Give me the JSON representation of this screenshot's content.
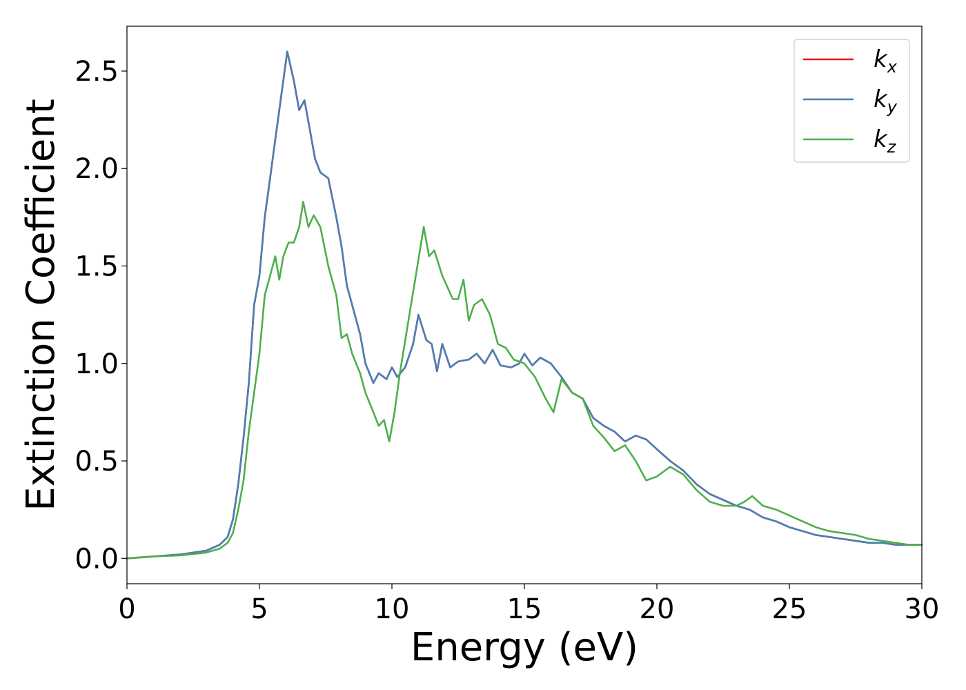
{
  "chart_data": {
    "type": "line",
    "title": "",
    "xlabel": "Energy (eV)",
    "ylabel": "Extinction Coefficient",
    "xlim": [
      0,
      30
    ],
    "ylim": [
      -0.13,
      2.73
    ],
    "xticks": [
      0,
      5,
      10,
      15,
      20,
      25,
      30
    ],
    "xtick_labels": [
      "0",
      "5",
      "10",
      "15",
      "20",
      "25",
      "30"
    ],
    "yticks": [
      0.0,
      0.5,
      1.0,
      1.5,
      2.0,
      2.5
    ],
    "ytick_labels": [
      "0.0",
      "0.5",
      "1.0",
      "1.5",
      "2.0",
      "2.5"
    ],
    "grid": false,
    "legend_position": "top-right",
    "series": [
      {
        "name": "k_x",
        "legend_base": "k",
        "legend_sub": "x",
        "color": "#e41a1c",
        "x": [
          0,
          1,
          2,
          3,
          3.5,
          3.8,
          4.0,
          4.2,
          4.4,
          4.6,
          4.8,
          5.0,
          5.2,
          5.4,
          5.6,
          5.8,
          6.05,
          6.3,
          6.5,
          6.7,
          6.9,
          7.1,
          7.3,
          7.6,
          7.9,
          8.1,
          8.3,
          8.5,
          8.8,
          9.0,
          9.3,
          9.5,
          9.8,
          10.0,
          10.2,
          10.5,
          10.8,
          11.0,
          11.3,
          11.5,
          11.7,
          11.9,
          12.2,
          12.5,
          12.9,
          13.2,
          13.5,
          13.8,
          14.1,
          14.5,
          14.8,
          15.0,
          15.3,
          15.6,
          16.0,
          16.4,
          16.8,
          17.2,
          17.6,
          18.0,
          18.4,
          18.8,
          19.2,
          19.6,
          20.0,
          20.5,
          21.0,
          21.5,
          22.0,
          22.5,
          23.0,
          23.5,
          24.0,
          24.5,
          25.0,
          25.5,
          26.0,
          26.5,
          27.0,
          27.5,
          28.0,
          28.5,
          29.0,
          29.5,
          30.0
        ],
        "y": [
          0.0,
          0.01,
          0.02,
          0.04,
          0.07,
          0.11,
          0.2,
          0.38,
          0.62,
          0.9,
          1.3,
          1.45,
          1.75,
          1.95,
          2.15,
          2.35,
          2.6,
          2.45,
          2.3,
          2.35,
          2.2,
          2.05,
          1.98,
          1.95,
          1.75,
          1.6,
          1.4,
          1.3,
          1.15,
          1.0,
          0.9,
          0.95,
          0.92,
          0.98,
          0.93,
          0.98,
          1.1,
          1.25,
          1.12,
          1.1,
          0.96,
          1.1,
          0.98,
          1.01,
          1.02,
          1.05,
          1.0,
          1.07,
          0.99,
          0.98,
          1.0,
          1.05,
          0.99,
          1.03,
          1.0,
          0.93,
          0.85,
          0.82,
          0.72,
          0.68,
          0.65,
          0.6,
          0.63,
          0.61,
          0.56,
          0.5,
          0.45,
          0.38,
          0.33,
          0.3,
          0.27,
          0.25,
          0.21,
          0.19,
          0.16,
          0.14,
          0.12,
          0.11,
          0.1,
          0.09,
          0.08,
          0.08,
          0.07,
          0.07,
          0.07
        ]
      },
      {
        "name": "k_y",
        "legend_base": "k",
        "legend_sub": "y",
        "color": "#4a7fb5",
        "x": [
          0,
          1,
          2,
          3,
          3.5,
          3.8,
          4.0,
          4.2,
          4.4,
          4.6,
          4.8,
          5.0,
          5.2,
          5.4,
          5.6,
          5.8,
          6.05,
          6.3,
          6.5,
          6.7,
          6.9,
          7.1,
          7.3,
          7.6,
          7.9,
          8.1,
          8.3,
          8.5,
          8.8,
          9.0,
          9.3,
          9.5,
          9.8,
          10.0,
          10.2,
          10.5,
          10.8,
          11.0,
          11.3,
          11.5,
          11.7,
          11.9,
          12.2,
          12.5,
          12.9,
          13.2,
          13.5,
          13.8,
          14.1,
          14.5,
          14.8,
          15.0,
          15.3,
          15.6,
          16.0,
          16.4,
          16.8,
          17.2,
          17.6,
          18.0,
          18.4,
          18.8,
          19.2,
          19.6,
          20.0,
          20.5,
          21.0,
          21.5,
          22.0,
          22.5,
          23.0,
          23.5,
          24.0,
          24.5,
          25.0,
          25.5,
          26.0,
          26.5,
          27.0,
          27.5,
          28.0,
          28.5,
          29.0,
          29.5,
          30.0
        ],
        "y": [
          0.0,
          0.01,
          0.02,
          0.04,
          0.07,
          0.11,
          0.2,
          0.38,
          0.62,
          0.9,
          1.3,
          1.45,
          1.75,
          1.95,
          2.15,
          2.35,
          2.6,
          2.45,
          2.3,
          2.35,
          2.2,
          2.05,
          1.98,
          1.95,
          1.75,
          1.6,
          1.4,
          1.3,
          1.15,
          1.0,
          0.9,
          0.95,
          0.92,
          0.98,
          0.93,
          0.98,
          1.1,
          1.25,
          1.12,
          1.1,
          0.96,
          1.1,
          0.98,
          1.01,
          1.02,
          1.05,
          1.0,
          1.07,
          0.99,
          0.98,
          1.0,
          1.05,
          0.99,
          1.03,
          1.0,
          0.93,
          0.85,
          0.82,
          0.72,
          0.68,
          0.65,
          0.6,
          0.63,
          0.61,
          0.56,
          0.5,
          0.45,
          0.38,
          0.33,
          0.3,
          0.27,
          0.25,
          0.21,
          0.19,
          0.16,
          0.14,
          0.12,
          0.11,
          0.1,
          0.09,
          0.08,
          0.08,
          0.07,
          0.07,
          0.07
        ]
      },
      {
        "name": "k_z",
        "legend_base": "k",
        "legend_sub": "z",
        "color": "#4daf4a",
        "x": [
          0,
          1,
          2,
          3,
          3.5,
          3.8,
          4.0,
          4.2,
          4.4,
          4.6,
          4.8,
          5.0,
          5.2,
          5.4,
          5.6,
          5.75,
          5.9,
          6.1,
          6.3,
          6.5,
          6.65,
          6.85,
          7.05,
          7.3,
          7.6,
          7.9,
          8.1,
          8.3,
          8.5,
          8.8,
          9.0,
          9.3,
          9.5,
          9.7,
          9.9,
          10.1,
          10.3,
          10.6,
          10.9,
          11.2,
          11.4,
          11.6,
          11.9,
          12.3,
          12.5,
          12.7,
          12.9,
          13.1,
          13.4,
          13.7,
          14.0,
          14.3,
          14.6,
          15.0,
          15.4,
          15.8,
          16.1,
          16.4,
          16.8,
          17.2,
          17.6,
          18.0,
          18.4,
          18.8,
          19.2,
          19.6,
          20.0,
          20.5,
          21.0,
          21.5,
          22.0,
          22.5,
          23.0,
          23.3,
          23.6,
          24.0,
          24.5,
          25.0,
          25.5,
          26.0,
          26.5,
          27.0,
          27.5,
          28.0,
          28.5,
          29.0,
          29.5,
          30.0
        ],
        "y": [
          0.0,
          0.01,
          0.015,
          0.03,
          0.05,
          0.08,
          0.13,
          0.25,
          0.4,
          0.65,
          0.85,
          1.05,
          1.35,
          1.45,
          1.55,
          1.43,
          1.55,
          1.62,
          1.62,
          1.7,
          1.83,
          1.7,
          1.76,
          1.7,
          1.5,
          1.35,
          1.13,
          1.15,
          1.05,
          0.95,
          0.85,
          0.75,
          0.68,
          0.71,
          0.6,
          0.75,
          0.95,
          1.2,
          1.45,
          1.7,
          1.55,
          1.58,
          1.45,
          1.33,
          1.33,
          1.43,
          1.22,
          1.3,
          1.33,
          1.25,
          1.1,
          1.08,
          1.02,
          1.0,
          0.93,
          0.82,
          0.75,
          0.92,
          0.85,
          0.82,
          0.68,
          0.62,
          0.55,
          0.58,
          0.5,
          0.4,
          0.42,
          0.47,
          0.43,
          0.35,
          0.29,
          0.27,
          0.27,
          0.29,
          0.32,
          0.27,
          0.25,
          0.22,
          0.19,
          0.16,
          0.14,
          0.13,
          0.12,
          0.1,
          0.09,
          0.08,
          0.07,
          0.07
        ]
      }
    ]
  }
}
